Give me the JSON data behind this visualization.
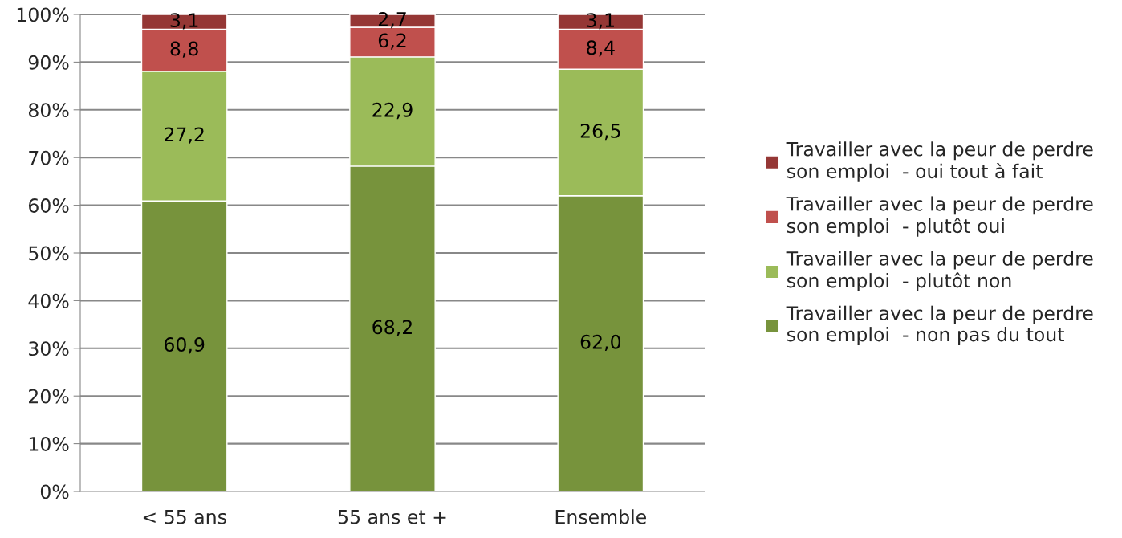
{
  "chart_data": {
    "type": "bar",
    "stacked": true,
    "categories": [
      "< 55 ans",
      "55 ans et +",
      "Ensemble"
    ],
    "series": [
      {
        "name": "Travailler avec la peur de perdre\nson emploi  - non pas du tout",
        "color": "#77933c",
        "values": [
          60.9,
          68.2,
          62.0
        ],
        "value_labels": [
          "60,9",
          "68,2",
          "62,0"
        ]
      },
      {
        "name": "Travailler avec la peur de perdre\nson emploi  - plutôt non",
        "color": "#9bbb59",
        "values": [
          27.2,
          22.9,
          26.5
        ],
        "value_labels": [
          "27,2",
          "22,9",
          "26,5"
        ]
      },
      {
        "name": "Travailler avec la peur de perdre\nson emploi  - plutôt oui",
        "color": "#c0504d",
        "values": [
          8.8,
          6.2,
          8.4
        ],
        "value_labels": [
          "8,8",
          "6,2",
          "8,4"
        ]
      },
      {
        "name": "Travailler avec la peur de perdre\nson emploi  - oui tout à fait",
        "color": "#953735",
        "values": [
          3.1,
          2.7,
          3.1
        ],
        "value_labels": [
          "3,1",
          "2,7",
          "3,1"
        ]
      }
    ],
    "ylim": [
      0,
      100
    ],
    "yticks": [
      {
        "value": 0,
        "label": "0%"
      },
      {
        "value": 10,
        "label": "10%"
      },
      {
        "value": 20,
        "label": "20%"
      },
      {
        "value": 30,
        "label": "30%"
      },
      {
        "value": 40,
        "label": "40%"
      },
      {
        "value": 50,
        "label": "50%"
      },
      {
        "value": 60,
        "label": "60%"
      },
      {
        "value": 70,
        "label": "70%"
      },
      {
        "value": 80,
        "label": "80%"
      },
      {
        "value": 90,
        "label": "90%"
      },
      {
        "value": 100,
        "label": "100%"
      }
    ],
    "grid": "y",
    "legend": "right"
  }
}
